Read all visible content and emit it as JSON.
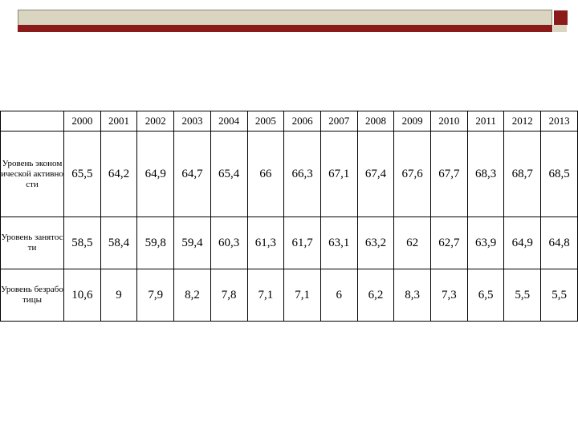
{
  "table": {
    "header": [
      "",
      "2000",
      "2001",
      "2002",
      "2003",
      "2004",
      "2005",
      "2006",
      "2007",
      "2008",
      "2009",
      "2010",
      "2011",
      "2012",
      "2013"
    ],
    "rows": [
      [
        "Уровень экономической активности",
        "65,5",
        "64,2",
        "64,9",
        "64,7",
        "65,4",
        "66",
        "66,3",
        "67,1",
        "67,4",
        "67,6",
        "67,7",
        "68,3",
        "68,7",
        "68,5"
      ],
      [
        "Уровень занятости",
        "58,5",
        "58,4",
        "59,8",
        "59,4",
        "60,3",
        "61,3",
        "61,7",
        "63,1",
        "63,2",
        "62",
        "62,7",
        "63,9",
        "64,9",
        "64,8"
      ],
      [
        "Уровень безработицы",
        "10,6",
        "9",
        "7,9",
        "8,2",
        "7,8",
        "7,1",
        "7,1",
        "6",
        "6,2",
        "8,3",
        "7,3",
        "6,5",
        "5,5",
        "5,5"
      ]
    ]
  }
}
